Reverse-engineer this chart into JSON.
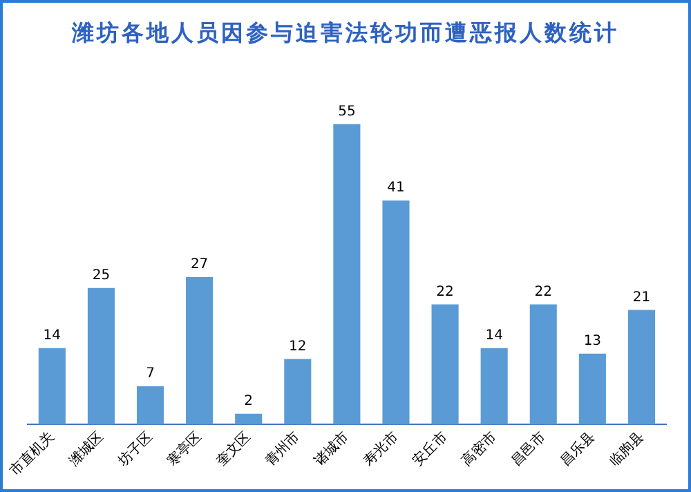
{
  "chart_data": {
    "type": "bar",
    "title": "潍坊各地人员因参与迫害法轮功而遭恶报人数统计",
    "categories": [
      "市直机关",
      "潍城区",
      "坊子区",
      "寒亭区",
      "奎文区",
      "青州市",
      "诸城市",
      "寿光市",
      "安丘市",
      "高密市",
      "昌邑市",
      "昌乐县",
      "临朐县"
    ],
    "values": [
      14,
      25,
      7,
      27,
      2,
      12,
      55,
      41,
      22,
      14,
      22,
      13,
      21
    ],
    "color": "#5b9bd5",
    "data_labels": true,
    "tick_labels": "x",
    "grid": false,
    "legend": false
  }
}
